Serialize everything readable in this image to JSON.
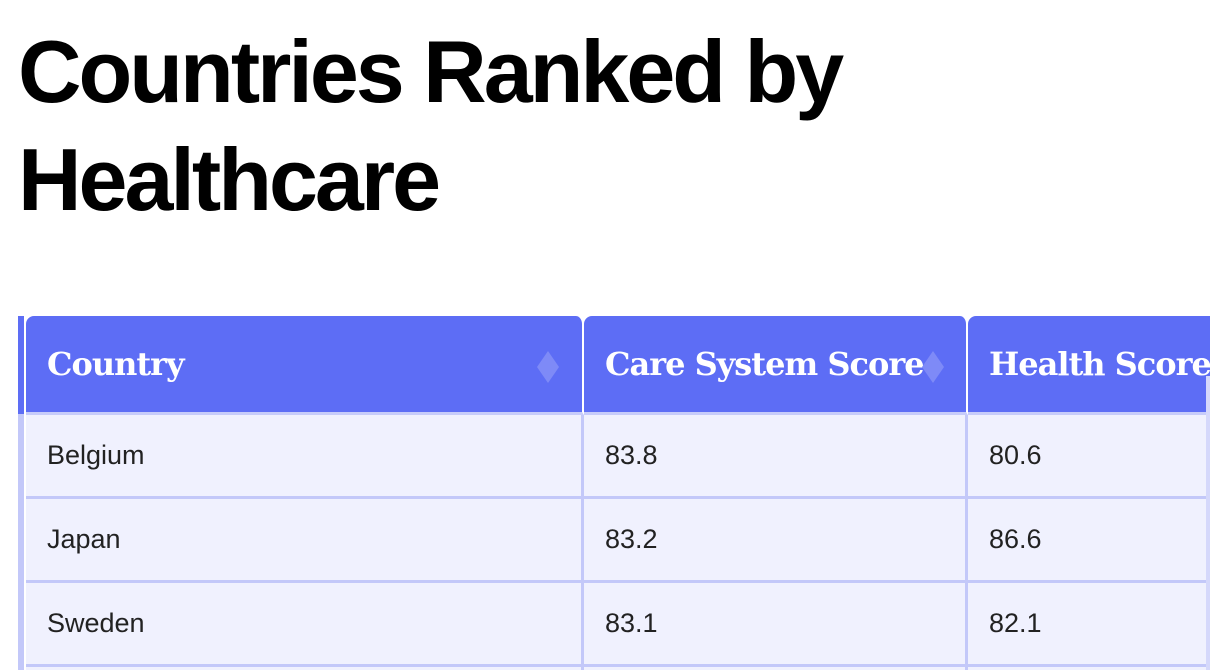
{
  "page": {
    "title": "Countries Ranked by Healthcare"
  },
  "table": {
    "columns": [
      {
        "label": "Country",
        "sortable": true
      },
      {
        "label": "Care System Score",
        "sortable": true
      },
      {
        "label": "Health Score",
        "sortable": true
      }
    ],
    "rows": [
      [
        "Belgium",
        "83.8",
        "80.6"
      ],
      [
        "Japan",
        "83.2",
        "86.6"
      ],
      [
        "Sweden",
        "83.1",
        "82.1"
      ]
    ]
  },
  "colors": {
    "header_bg": "#5d6df5",
    "row_bg": "#f0f1fe",
    "border": "#c3c8f9",
    "sort_icon": "#7e8af7"
  },
  "icons": {
    "sort": "sort-arrows-icon"
  }
}
